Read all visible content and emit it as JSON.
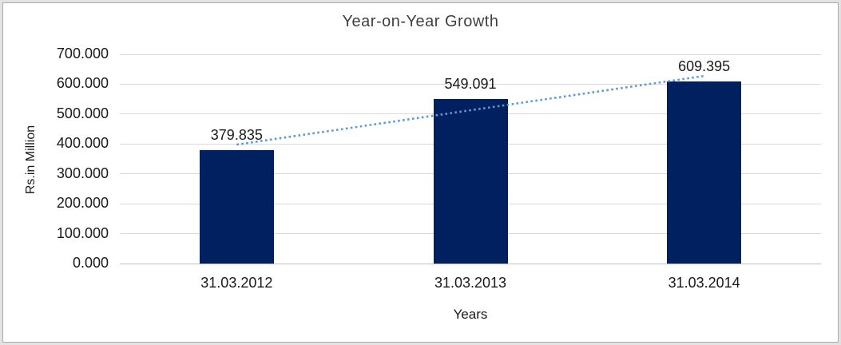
{
  "chart_data": {
    "type": "bar",
    "title": "Year-on-Year Growth",
    "xlabel": "Years",
    "ylabel": "Rs.in Million",
    "categories": [
      "31.03.2012",
      "31.03.2013",
      "31.03.2014"
    ],
    "values": [
      379.835,
      549.091,
      609.395
    ],
    "value_labels": [
      "379.835",
      "549.091",
      "609.395"
    ],
    "y_ticks": [
      "0.000",
      "100.000",
      "200.000",
      "300.000",
      "400.000",
      "500.000",
      "600.000",
      "700.000"
    ],
    "ylim": [
      0,
      700
    ],
    "grid": true,
    "legend": "none",
    "colors": {
      "bar": "#002060",
      "trendline": "#5B9BD5",
      "gridline": "#d9d9d9",
      "axis_line": "#bfbfbf",
      "text": "#1a1a1a",
      "title_text": "#404040",
      "frame": "#e3e3e3"
    },
    "trendline": {
      "type": "linear",
      "style": "dotted"
    }
  }
}
